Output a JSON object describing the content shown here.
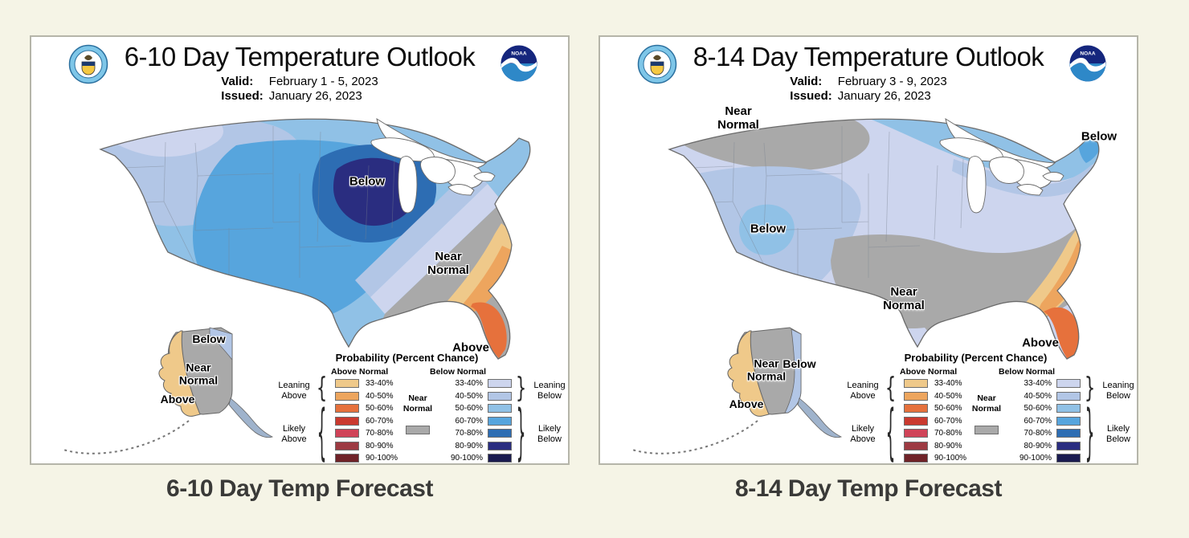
{
  "page": {
    "background_color": "#f5f4e6"
  },
  "logos": {
    "noaa_text": "NOAA"
  },
  "legend": {
    "title": "Probability (Percent Chance)",
    "above_header": "Above Normal",
    "below_header": "Below Normal",
    "near_normal_label": "Near\nNormal",
    "near_normal_color": "#a9a9a9",
    "leaning_above_label": "Leaning\nAbove",
    "likely_above_label": "Likely\nAbove",
    "leaning_below_label": "Leaning\nBelow",
    "likely_below_label": "Likely\nBelow",
    "rows": [
      {
        "range": "33-40%",
        "above_color": "#efc98a",
        "below_color": "#cdd5ee"
      },
      {
        "range": "40-50%",
        "above_color": "#eda55e",
        "below_color": "#b2c6e6"
      },
      {
        "range": "50-60%",
        "above_color": "#e6713c",
        "below_color": "#90c1e6"
      },
      {
        "range": "60-70%",
        "above_color": "#ca3a2f",
        "below_color": "#57a5dd"
      },
      {
        "range": "70-80%",
        "above_color": "#d04358",
        "below_color": "#2d6db3"
      },
      {
        "range": "80-90%",
        "above_color": "#9d3a42",
        "below_color": "#2a2d80"
      },
      {
        "range": "90-100%",
        "above_color": "#6f2228",
        "below_color": "#1a1b50"
      }
    ]
  },
  "panels": [
    {
      "title": "6-10 Day Temperature Outlook",
      "valid_label": "Valid:",
      "valid_value": "February 1 - 5, 2023",
      "issued_label": "Issued:",
      "issued_value": "January 26, 2023",
      "caption": "6-10 Day Temp Forecast",
      "labels": {
        "midwest_below": "Below",
        "southeast_near_normal": "Near\nNormal",
        "florida_above": "Above",
        "alaska_below": "Below",
        "alaska_near_normal": "Near\nNormal",
        "alaska_above": "Above"
      }
    },
    {
      "title": "8-14 Day Temperature Outlook",
      "valid_label": "Valid:",
      "valid_value": "February 3 - 9, 2023",
      "issued_label": "Issued:",
      "issued_value": "January 26, 2023",
      "caption": "8-14 Day Temp Forecast",
      "labels": {
        "northwest_near_normal": "Near\nNormal",
        "west_below": "Below",
        "southcentral_near_normal": "Near\nNormal",
        "maine_below": "Below",
        "florida_above": "Above",
        "alaska_near_normal": "Near\nNormal",
        "alaska_below": "Below",
        "alaska_above": "Above"
      }
    }
  ]
}
